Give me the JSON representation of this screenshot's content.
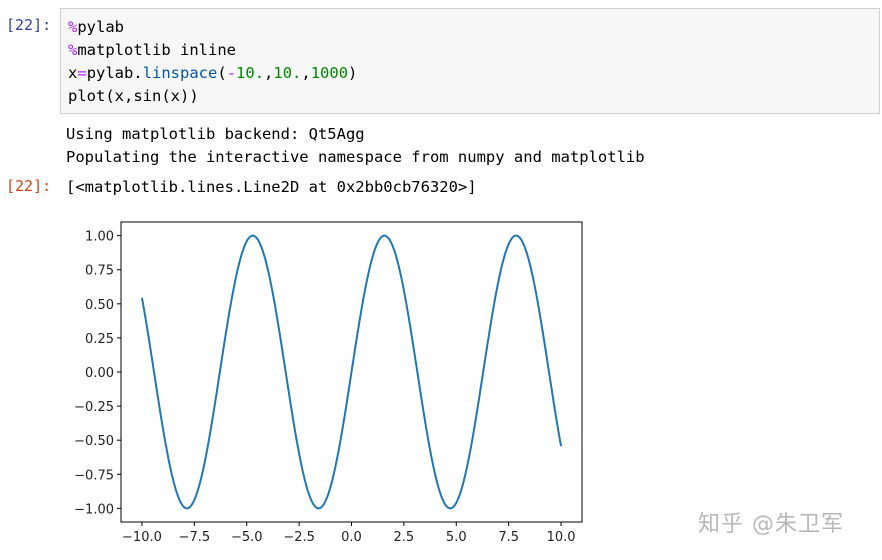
{
  "cell_in": {
    "prompt": "[22]:",
    "code": [
      [
        {
          "t": "%",
          "c": "kw-magic"
        },
        {
          "t": "pylab",
          "c": ""
        }
      ],
      [
        {
          "t": "%",
          "c": "kw-magic"
        },
        {
          "t": "matplotlib inline",
          "c": ""
        }
      ],
      [
        {
          "t": "x",
          "c": ""
        },
        {
          "t": "=",
          "c": "op"
        },
        {
          "t": "pylab.",
          "c": ""
        },
        {
          "t": "linspace",
          "c": "fn"
        },
        {
          "t": "(",
          "c": ""
        },
        {
          "t": "-",
          "c": "op"
        },
        {
          "t": "10.",
          "c": "num"
        },
        {
          "t": ",",
          "c": ""
        },
        {
          "t": "10.",
          "c": "num"
        },
        {
          "t": ",",
          "c": ""
        },
        {
          "t": "1000",
          "c": "num"
        },
        {
          "t": ")",
          "c": ""
        }
      ],
      [
        {
          "t": "plot(x,sin(x))",
          "c": ""
        }
      ]
    ]
  },
  "stream_output": [
    "Using matplotlib backend: Qt5Agg",
    "Populating the interactive namespace from numpy and matplotlib"
  ],
  "cell_out": {
    "prompt": "[22]:",
    "repr": "[<matplotlib.lines.Line2D at 0x2bb0cb76320>]"
  },
  "chart_data": {
    "type": "line",
    "series": [
      {
        "function": "sin",
        "x_start": -10,
        "x_end": 10,
        "n_points": 1000,
        "color": "#1f77b4"
      }
    ],
    "xlim": [
      -11,
      11
    ],
    "ylim": [
      -1.1,
      1.1
    ],
    "x_ticks": [
      "−10.0",
      "−7.5",
      "−5.0",
      "−2.5",
      "0.0",
      "2.5",
      "5.0",
      "7.5",
      "10.0"
    ],
    "x_tick_values": [
      -10,
      -7.5,
      -5,
      -2.5,
      0,
      2.5,
      5,
      7.5,
      10
    ],
    "y_ticks": [
      "1.00",
      "0.75",
      "0.50",
      "0.25",
      "0.00",
      "−0.25",
      "−0.50",
      "−0.75",
      "−1.00"
    ],
    "y_tick_values": [
      1,
      0.75,
      0.5,
      0.25,
      0,
      -0.25,
      -0.5,
      -0.75,
      -1
    ],
    "grid": false,
    "title": "",
    "xlabel": "",
    "ylabel": ""
  },
  "watermark": "知乎 @朱卫军"
}
